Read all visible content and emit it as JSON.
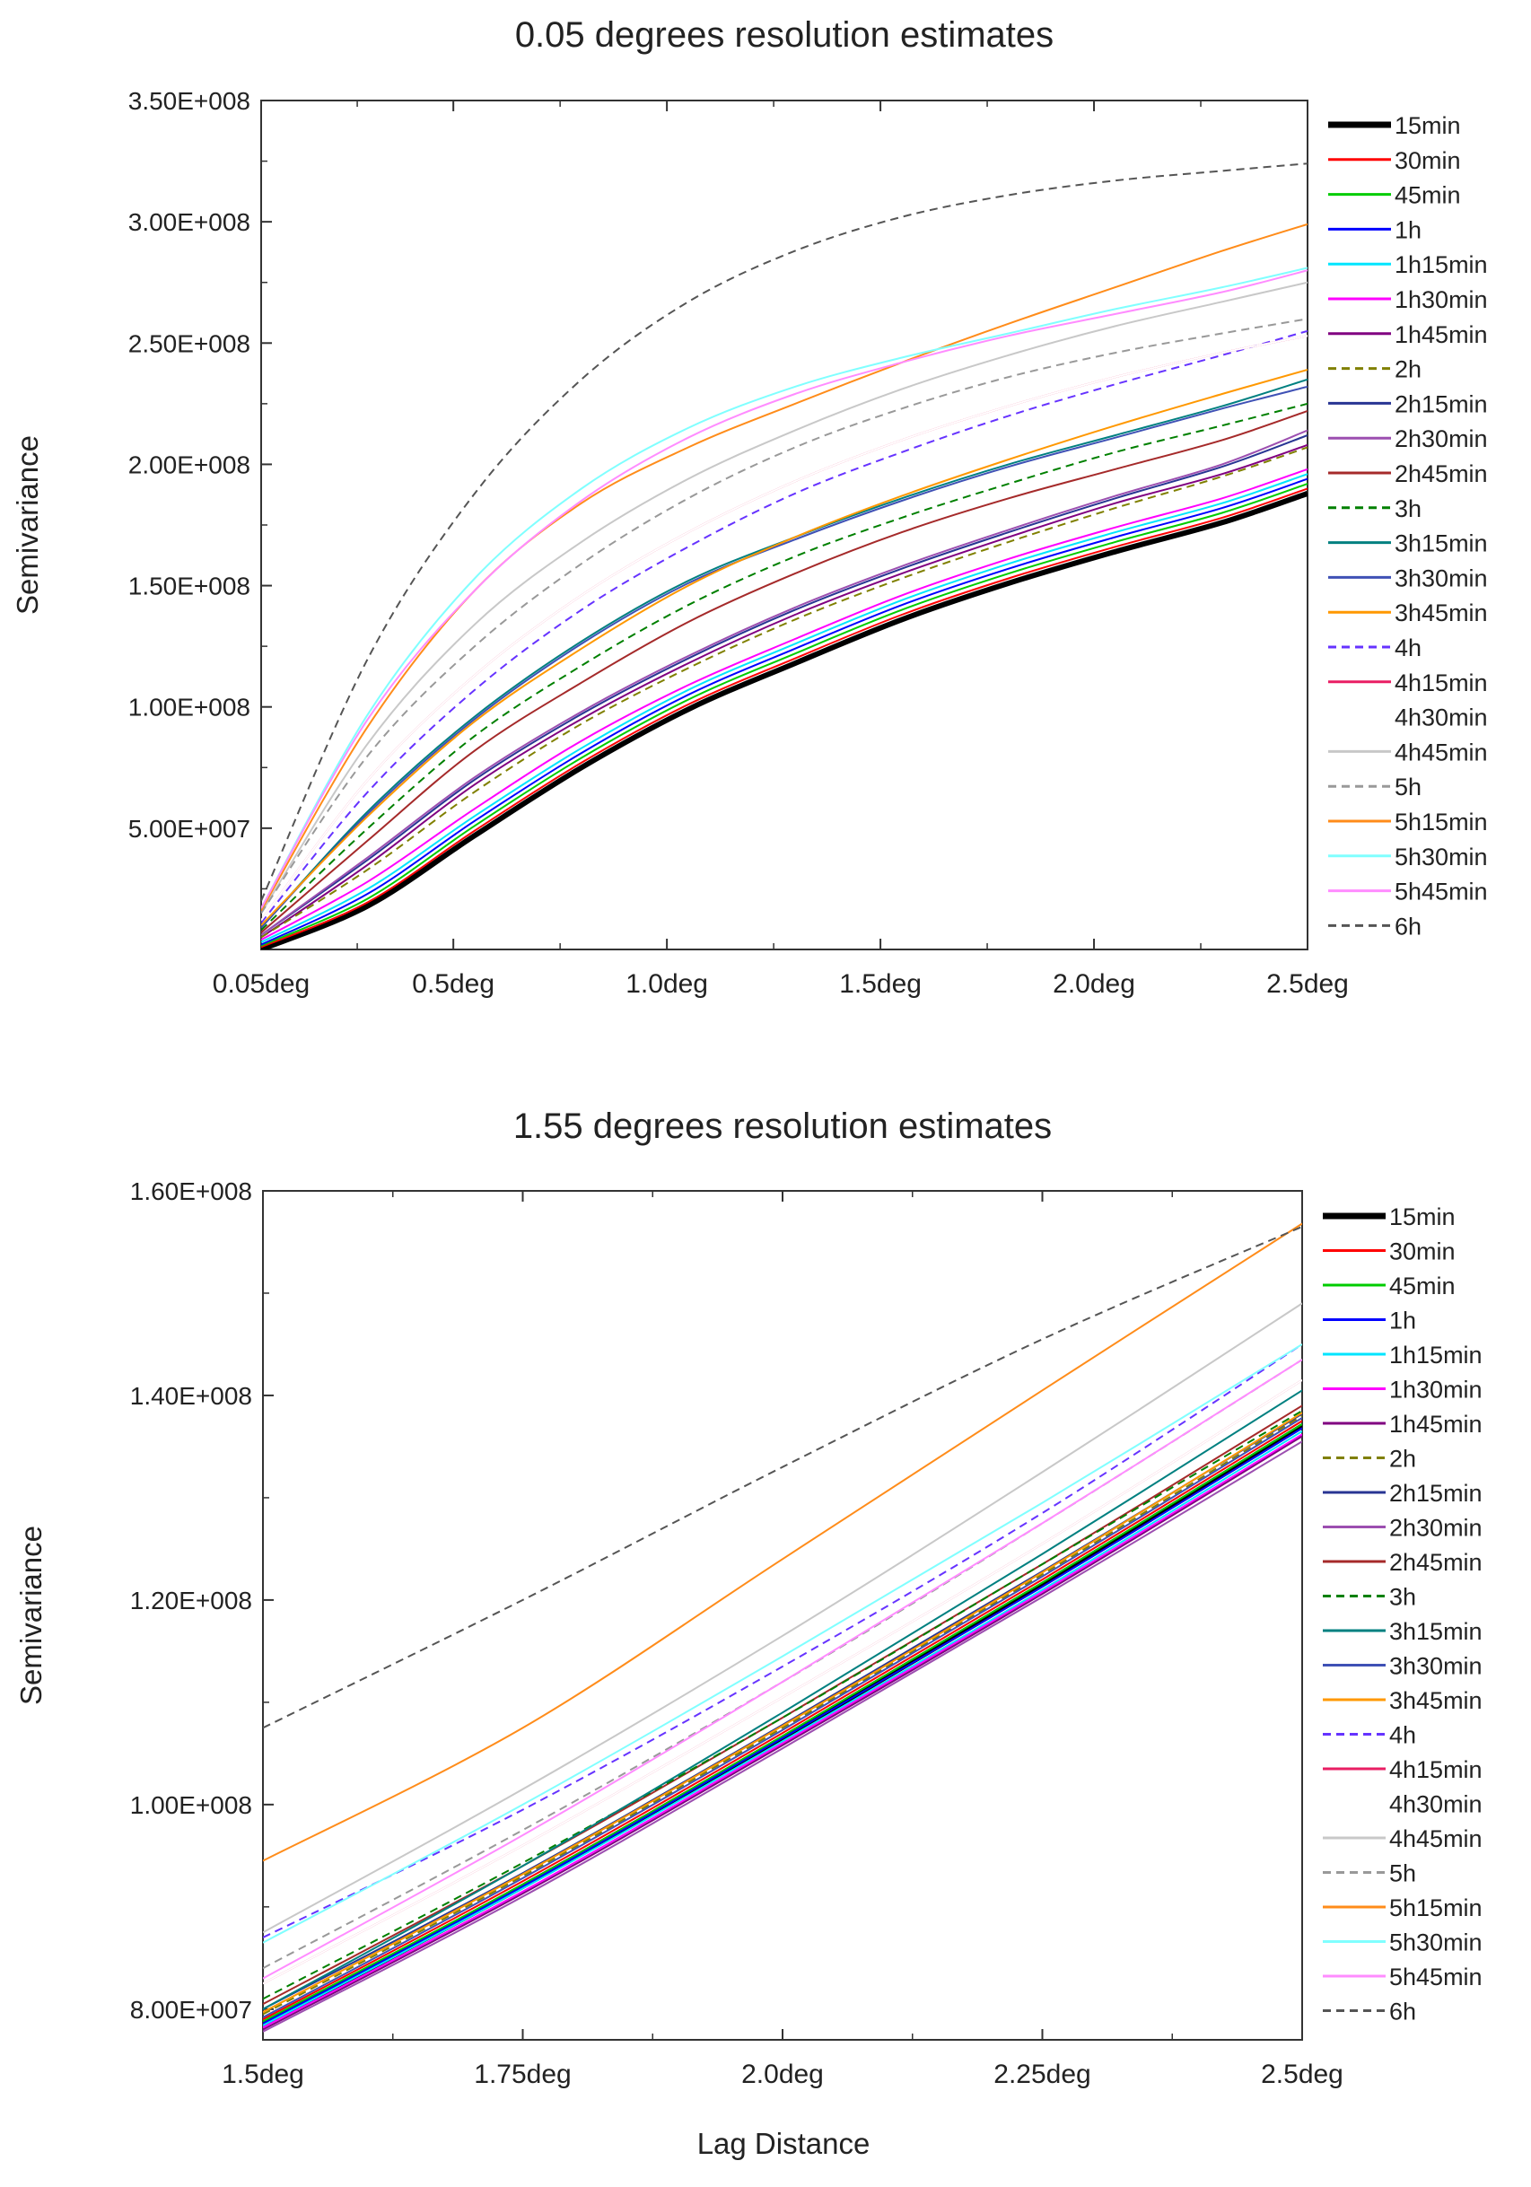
{
  "figure": {
    "xlabel": "Lag Distance"
  },
  "chart_data": [
    {
      "type": "line",
      "title": "0.05 degrees resolution estimates",
      "xlabel": "",
      "ylabel": "Semivariance",
      "xlim": [
        0.05,
        2.5
      ],
      "ylim": [
        0,
        350000000
      ],
      "xticks": [
        {
          "value": 0.05,
          "label": "0.05deg"
        },
        {
          "value": 0.5,
          "label": "0.5deg"
        },
        {
          "value": 1.0,
          "label": "1.0deg"
        },
        {
          "value": 1.5,
          "label": "1.5deg"
        },
        {
          "value": 2.0,
          "label": "2.0deg"
        },
        {
          "value": 2.5,
          "label": "2.5deg"
        }
      ],
      "yticks": [
        {
          "value": 50000000,
          "label": "5.00E+007"
        },
        {
          "value": 100000000,
          "label": "1.00E+008"
        },
        {
          "value": 150000000,
          "label": "1.50E+008"
        },
        {
          "value": 200000000,
          "label": "2.00E+008"
        },
        {
          "value": 250000000,
          "label": "2.50E+008"
        },
        {
          "value": 300000000,
          "label": "3.00E+008"
        },
        {
          "value": 350000000,
          "label": "3.50E+008"
        }
      ],
      "x": [
        0.05,
        0.3,
        0.55,
        0.8,
        1.05,
        1.3,
        1.55,
        1.8,
        2.05,
        2.3,
        2.5
      ],
      "legend_position": "right",
      "series": [
        {
          "name": "15min",
          "color": "#000000",
          "style": "solid",
          "weight": "bold",
          "values": [
            0,
            18000000,
            47000000,
            75000000,
            99000000,
            118000000,
            136000000,
            151000000,
            164000000,
            176000000,
            188000000
          ]
        },
        {
          "name": "30min",
          "color": "#ff0000",
          "style": "solid",
          "values": [
            1000000,
            19500000,
            49000000,
            77000000,
            101000000,
            120000000,
            138000000,
            153000000,
            166000000,
            178000000,
            190000000
          ]
        },
        {
          "name": "45min",
          "color": "#00cc00",
          "style": "solid",
          "values": [
            1500000,
            21000000,
            51000000,
            79000000,
            103000000,
            122000000,
            140000000,
            155000000,
            168000000,
            180000000,
            192000000
          ]
        },
        {
          "name": "1h",
          "color": "#0000ff",
          "style": "solid",
          "values": [
            2000000,
            23000000,
            53000000,
            81000000,
            105000000,
            124000000,
            142000000,
            157000000,
            170000000,
            182000000,
            194000000
          ]
        },
        {
          "name": "1h15min",
          "color": "#00e5ff",
          "style": "solid",
          "values": [
            3000000,
            25000000,
            55000000,
            83000000,
            107000000,
            126000000,
            144000000,
            159000000,
            172000000,
            184000000,
            196000000
          ]
        },
        {
          "name": "1h30min",
          "color": "#ff00ff",
          "style": "solid",
          "values": [
            4000000,
            28000000,
            58000000,
            86000000,
            109000000,
            128000000,
            146000000,
            161000000,
            174000000,
            186000000,
            198000000
          ]
        },
        {
          "name": "1h45min",
          "color": "#800080",
          "style": "solid",
          "values": [
            5000000,
            35000000,
            68000000,
            95000000,
            118000000,
            138000000,
            155000000,
            170000000,
            184000000,
            196000000,
            208000000
          ]
        },
        {
          "name": "2h",
          "color": "#808000",
          "style": "dashed",
          "values": [
            5000000,
            33000000,
            65000000,
            93000000,
            116000000,
            136000000,
            153000000,
            168000000,
            182000000,
            195000000,
            207000000
          ]
        },
        {
          "name": "2h15min",
          "color": "#283593",
          "style": "solid",
          "values": [
            6000000,
            37000000,
            70000000,
            97000000,
            120000000,
            140000000,
            157000000,
            172000000,
            186000000,
            199000000,
            212000000
          ]
        },
        {
          "name": "2h30min",
          "color": "#9c4fb0",
          "style": "solid",
          "values": [
            6000000,
            38000000,
            71000000,
            98000000,
            121000000,
            141000000,
            158000000,
            173000000,
            187000000,
            200000000,
            214000000
          ]
        },
        {
          "name": "2h45min",
          "color": "#a52a2a",
          "style": "solid",
          "values": [
            7000000,
            45000000,
            82000000,
            110000000,
            135000000,
            155000000,
            172000000,
            186000000,
            198000000,
            210000000,
            222000000
          ]
        },
        {
          "name": "3h",
          "color": "#008000",
          "style": "dashed",
          "values": [
            8000000,
            50000000,
            88000000,
            117000000,
            142000000,
            162000000,
            178000000,
            192000000,
            205000000,
            216000000,
            225000000
          ]
        },
        {
          "name": "3h15min",
          "color": "#008080",
          "style": "solid",
          "values": [
            9000000,
            57000000,
            96000000,
            127000000,
            152000000,
            170000000,
            186000000,
            200000000,
            212000000,
            224000000,
            235000000
          ]
        },
        {
          "name": "3h30min",
          "color": "#3f51b5",
          "style": "solid",
          "values": [
            9000000,
            56000000,
            95000000,
            126000000,
            151000000,
            169000000,
            185000000,
            199000000,
            211000000,
            223000000,
            232000000
          ]
        },
        {
          "name": "3h45min",
          "color": "#ff9800",
          "style": "solid",
          "values": [
            10000000,
            55000000,
            94000000,
            124000000,
            150000000,
            170000000,
            187000000,
            202000000,
            216000000,
            229000000,
            239000000
          ]
        },
        {
          "name": "4h",
          "color": "#6633ff",
          "style": "dashed",
          "values": [
            11000000,
            65000000,
            107000000,
            140000000,
            166000000,
            188000000,
            205000000,
            220000000,
            233000000,
            245000000,
            255000000
          ]
        },
        {
          "name": "4h15min",
          "color": "#e91e63",
          "style": "solid",
          "values": [
            12000000,
            70000000,
            113000000,
            146000000,
            172000000,
            193000000,
            210000000,
            224000000,
            236000000,
            246000000,
            253000000
          ]
        },
        {
          "name": "4h30min",
          "color": "#ffffff",
          "style": "solid",
          "values": [
            12000000,
            70000000,
            113000000,
            146000000,
            172000000,
            193000000,
            210000000,
            224000000,
            236000000,
            246000000,
            253000000
          ]
        },
        {
          "name": "4h45min",
          "color": "#c8c8c8",
          "style": "solid",
          "values": [
            15000000,
            85000000,
            134000000,
            168000000,
            194000000,
            214000000,
            231000000,
            245000000,
            257000000,
            267000000,
            275000000
          ]
        },
        {
          "name": "5h",
          "color": "#999999",
          "style": "dashed",
          "values": [
            15000000,
            80000000,
            125000000,
            159000000,
            186000000,
            207000000,
            223000000,
            236000000,
            246000000,
            254000000,
            260000000
          ]
        },
        {
          "name": "5h15min",
          "color": "#ff8c1a",
          "style": "solid",
          "values": [
            16000000,
            92000000,
            148000000,
            184000000,
            207000000,
            225000000,
            242000000,
            258000000,
            273000000,
            288000000,
            299000000
          ]
        },
        {
          "name": "5h30min",
          "color": "#80ffff",
          "style": "solid",
          "values": [
            17000000,
            97000000,
            153000000,
            190000000,
            215000000,
            232000000,
            244000000,
            254000000,
            264000000,
            273000000,
            281000000
          ]
        },
        {
          "name": "5h45min",
          "color": "#ff8cff",
          "style": "solid",
          "values": [
            17000000,
            95000000,
            148000000,
            185000000,
            211000000,
            229000000,
            242000000,
            253000000,
            262000000,
            271000000,
            280000000
          ]
        },
        {
          "name": "6h",
          "color": "#555555",
          "style": "dashed",
          "values": [
            20000000,
            120000000,
            188000000,
            235000000,
            267000000,
            288000000,
            302000000,
            311000000,
            317000000,
            321000000,
            324000000
          ]
        }
      ]
    },
    {
      "type": "line",
      "title": "1.55 degrees resolution estimates",
      "xlabel": "",
      "ylabel": "Semivariance",
      "xlim": [
        1.5,
        2.5
      ],
      "ylim": [
        77000000,
        160000000
      ],
      "xticks": [
        {
          "value": 1.5,
          "label": "1.5deg"
        },
        {
          "value": 1.75,
          "label": "1.75deg"
        },
        {
          "value": 2.0,
          "label": "2.0deg"
        },
        {
          "value": 2.25,
          "label": "2.25deg"
        },
        {
          "value": 2.5,
          "label": "2.5deg"
        }
      ],
      "yticks": [
        {
          "value": 80000000,
          "label": "8.00E+007"
        },
        {
          "value": 100000000,
          "label": "1.00E+008"
        },
        {
          "value": 120000000,
          "label": "1.20E+008"
        },
        {
          "value": 140000000,
          "label": "1.40E+008"
        },
        {
          "value": 160000000,
          "label": "1.60E+008"
        }
      ],
      "x": [
        1.5,
        1.75,
        2.0,
        2.25,
        2.5
      ],
      "legend_position": "right",
      "series": [
        {
          "name": "15min",
          "color": "#000000",
          "style": "solid",
          "weight": "bold",
          "values": [
            78500000,
            92000000,
            106500000,
            121500000,
            137000000
          ]
        },
        {
          "name": "30min",
          "color": "#ff0000",
          "style": "solid",
          "values": [
            79000000,
            92500000,
            107000000,
            122000000,
            137500000
          ]
        },
        {
          "name": "45min",
          "color": "#00cc00",
          "style": "solid",
          "values": [
            78800000,
            92200000,
            106700000,
            121700000,
            137200000
          ]
        },
        {
          "name": "1h",
          "color": "#0000ff",
          "style": "solid",
          "values": [
            78600000,
            92000000,
            106500000,
            121300000,
            136800000
          ]
        },
        {
          "name": "1h15min",
          "color": "#00e5ff",
          "style": "solid",
          "values": [
            78400000,
            91800000,
            106200000,
            121000000,
            136500000
          ]
        },
        {
          "name": "1h30min",
          "color": "#ff00ff",
          "style": "solid",
          "values": [
            78200000,
            91500000,
            106000000,
            120800000,
            136200000
          ]
        },
        {
          "name": "1h45min",
          "color": "#800080",
          "style": "solid",
          "values": [
            78000000,
            91300000,
            105800000,
            120600000,
            136000000
          ]
        },
        {
          "name": "2h",
          "color": "#808000",
          "style": "dashed",
          "values": [
            79500000,
            93000000,
            107500000,
            122500000,
            138000000
          ]
        },
        {
          "name": "2h15min",
          "color": "#283593",
          "style": "solid",
          "values": [
            80000000,
            93300000,
            107800000,
            122800000,
            138200000
          ]
        },
        {
          "name": "2h30min",
          "color": "#9c4fb0",
          "style": "solid",
          "values": [
            77800000,
            91000000,
            105500000,
            120300000,
            135500000
          ]
        },
        {
          "name": "2h45min",
          "color": "#a52a2a",
          "style": "solid",
          "values": [
            80500000,
            94000000,
            108500000,
            123500000,
            139000000
          ]
        },
        {
          "name": "3h",
          "color": "#008000",
          "style": "dashed",
          "values": [
            81000000,
            94300000,
            108500000,
            123500000,
            138500000
          ]
        },
        {
          "name": "3h15min",
          "color": "#008080",
          "style": "solid",
          "values": [
            80000000,
            94000000,
            109000000,
            124500000,
            140500000
          ]
        },
        {
          "name": "3h30min",
          "color": "#3f51b5",
          "style": "solid",
          "values": [
            79200000,
            92800000,
            107300000,
            122300000,
            137800000
          ]
        },
        {
          "name": "3h45min",
          "color": "#ff9800",
          "style": "solid",
          "values": [
            79700000,
            93200000,
            107700000,
            122700000,
            138300000
          ]
        },
        {
          "name": "4h",
          "color": "#6633ff",
          "style": "dashed",
          "values": [
            87000000,
            99500000,
            113500000,
            128500000,
            145000000
          ]
        },
        {
          "name": "4h15min",
          "color": "#e91e63",
          "style": "solid",
          "values": [
            82500000,
            96000000,
            110500000,
            125500000,
            141500000
          ]
        },
        {
          "name": "4h30min",
          "color": "#ffffff",
          "style": "solid",
          "values": [
            82500000,
            96000000,
            110500000,
            125500000,
            141500000
          ]
        },
        {
          "name": "4h45min",
          "color": "#c8c8c8",
          "style": "solid",
          "values": [
            87500000,
            101500000,
            116500000,
            132500000,
            149000000
          ]
        },
        {
          "name": "5h",
          "color": "#999999",
          "style": "dashed",
          "values": [
            84000000,
            97500000,
            112000000,
            127500000,
            143500000
          ]
        },
        {
          "name": "5h15min",
          "color": "#ff8c1a",
          "style": "solid",
          "values": [
            94500000,
            107500000,
            124000000,
            140500000,
            156800000
          ]
        },
        {
          "name": "5h30min",
          "color": "#80ffff",
          "style": "solid",
          "values": [
            86500000,
            100000000,
            114500000,
            129500000,
            145000000
          ]
        },
        {
          "name": "5h45min",
          "color": "#ff8cff",
          "style": "solid",
          "values": [
            83000000,
            97000000,
            112000000,
            127500000,
            143500000
          ]
        },
        {
          "name": "6h",
          "color": "#555555",
          "style": "dashed",
          "values": [
            107500000,
            120000000,
            133000000,
            145500000,
            156500000
          ]
        }
      ]
    }
  ]
}
